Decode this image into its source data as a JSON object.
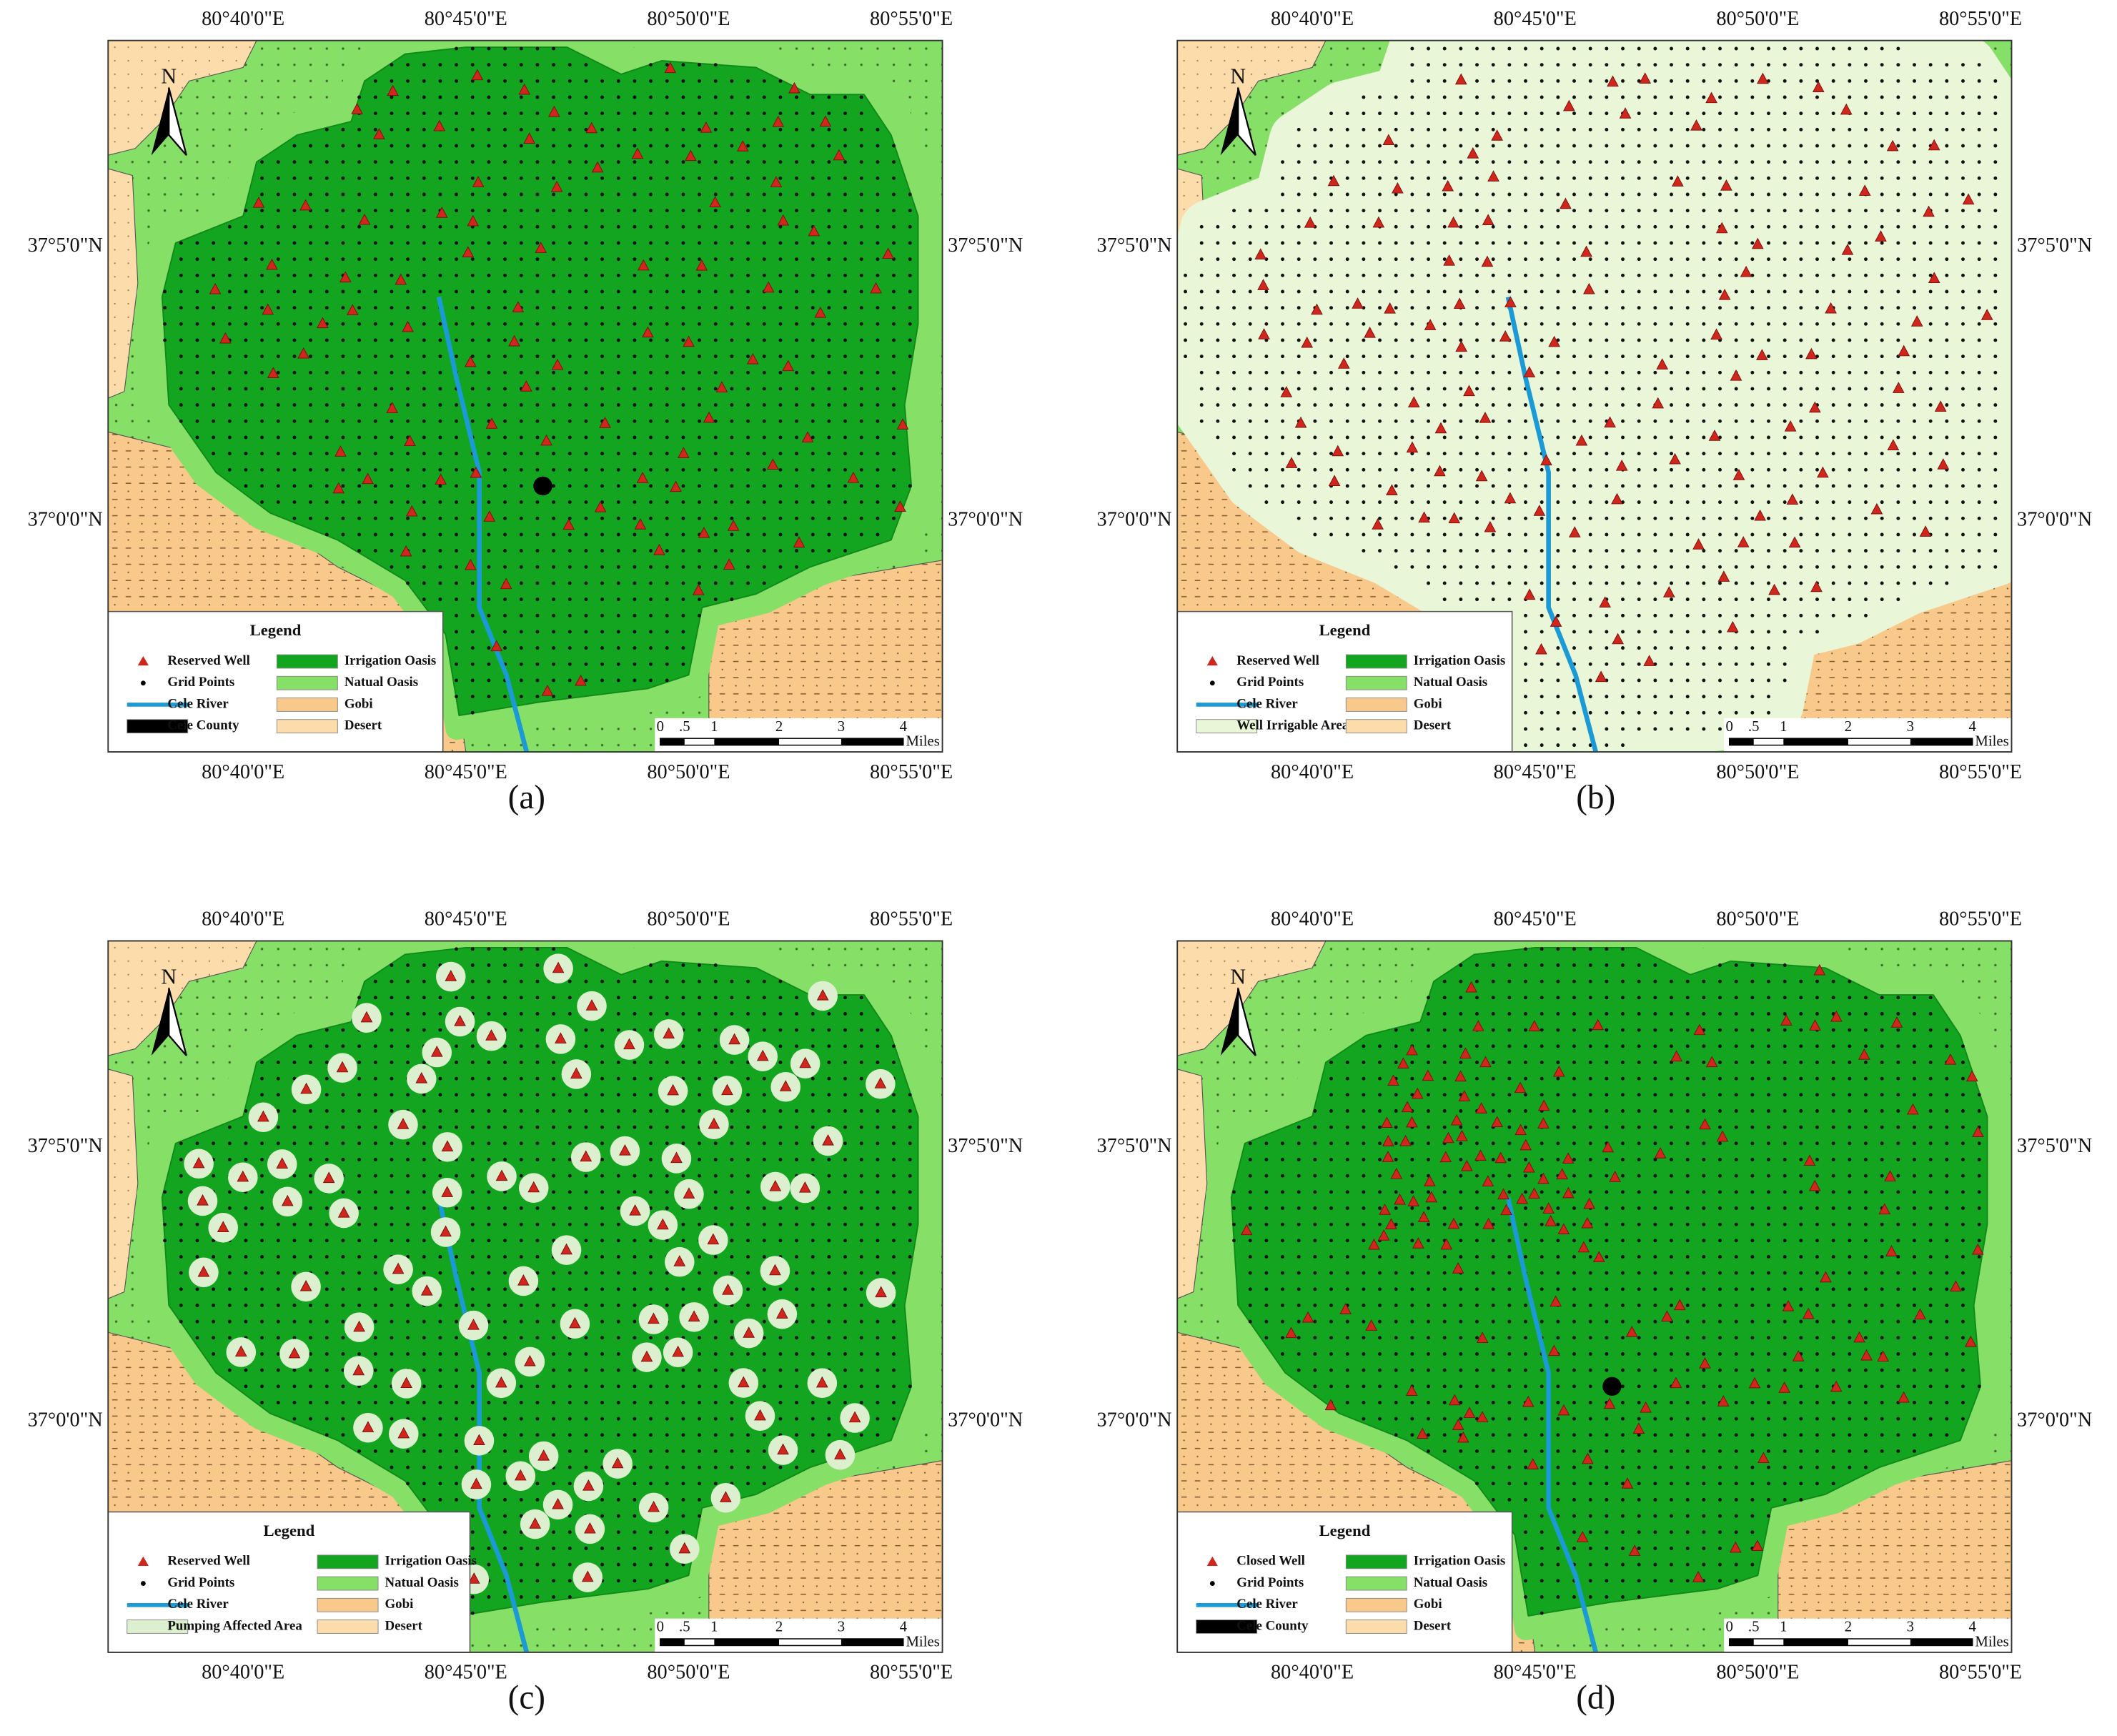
{
  "panels": [
    {
      "label": "(a)",
      "x_labels": [
        "80°40'0\"E",
        "80°45'0\"E",
        "80°50'0\"E",
        "80°55'0\"E"
      ],
      "y_labels": [
        "37°5'0\"N",
        "37°0'0\"N"
      ],
      "north": "N",
      "legend": {
        "title": "Legend",
        "items": [
          "Reserved Well",
          "Irrigation Oasis",
          "Grid Points",
          "Natual Oasis",
          "Cele River",
          "Gobi",
          "Cele County",
          "Desert"
        ]
      },
      "scale": {
        "ticks": [
          "0",
          ".5",
          "1",
          "2",
          "3",
          "4"
        ],
        "unit": "Miles"
      }
    },
    {
      "label": "(b)",
      "x_labels": [
        "80°40'0\"E",
        "80°45'0\"E",
        "80°50'0\"E",
        "80°55'0\"E"
      ],
      "y_labels": [
        "37°5'0\"N",
        "37°0'0\"N"
      ],
      "north": "N",
      "legend": {
        "title": "Legend",
        "items": [
          "Reserved Well",
          "Irrigation Oasis",
          "Grid Points",
          "Natual Oasis",
          "Cele River",
          "Gobi",
          "Well Irrigable Area",
          "Desert"
        ]
      },
      "scale": {
        "ticks": [
          "0",
          ".5",
          "1",
          "2",
          "3",
          "4"
        ],
        "unit": "Miles"
      }
    },
    {
      "label": "(c)",
      "x_labels": [
        "80°40'0\"E",
        "80°45'0\"E",
        "80°50'0\"E",
        "80°55'0\"E"
      ],
      "y_labels": [
        "37°5'0\"N",
        "37°0'0\"N"
      ],
      "north": "N",
      "legend": {
        "title": "Legend",
        "items": [
          "Reserved Well",
          "Irrigation Oasis",
          "Grid Points",
          "Natual Oasis",
          "Cele River",
          "Gobi",
          "Pumping Affected Area",
          "Desert"
        ]
      },
      "scale": {
        "ticks": [
          "0",
          ".5",
          "1",
          "2",
          "3",
          "4"
        ],
        "unit": "Miles"
      }
    },
    {
      "label": "(d)",
      "x_labels": [
        "80°40'0\"E",
        "80°45'0\"E",
        "80°50'0\"E",
        "80°55'0\"E"
      ],
      "y_labels": [
        "37°5'0\"N",
        "37°0'0\"N"
      ],
      "north": "N",
      "legend": {
        "title": "Legend",
        "items": [
          "Closed Well",
          "Irrigation Oasis",
          "Grid Points",
          "Natual Oasis",
          "Cele River",
          "Gobi",
          "Cele County",
          "Desert"
        ]
      },
      "scale": {
        "ticks": [
          "0",
          ".5",
          "1",
          "2",
          "3",
          "4"
        ],
        "unit": "Miles"
      }
    }
  ]
}
